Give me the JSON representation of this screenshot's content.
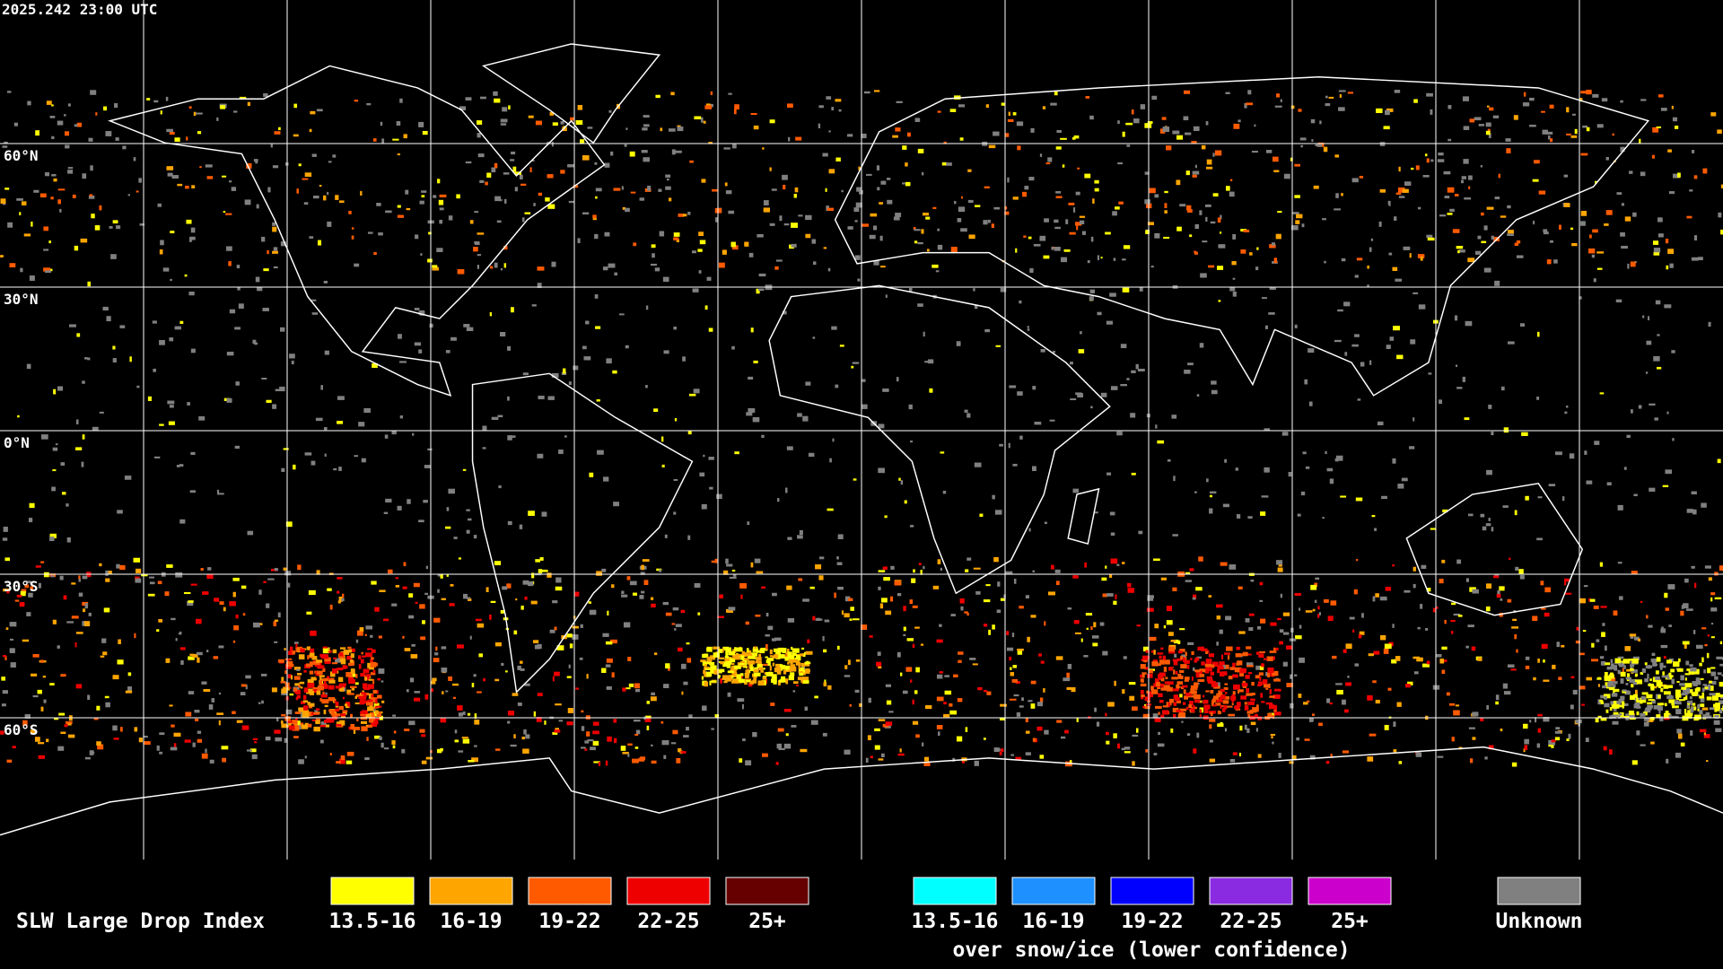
{
  "timestamp": "2025.242 23:00 UTC",
  "latitude_labels": [
    "60°N",
    "30°N",
    "0°N",
    "30°S",
    "60°S"
  ],
  "legend": {
    "title": "SLW Large Drop Index",
    "groups": [
      {
        "items": [
          {
            "label": "13.5-16",
            "color": "#ffff00"
          },
          {
            "label": "16-19",
            "color": "#ffa500"
          },
          {
            "label": "19-22",
            "color": "#ff5a00"
          },
          {
            "label": "22-25",
            "color": "#ee0000"
          },
          {
            "label": "25+",
            "color": "#660000"
          }
        ]
      },
      {
        "items": [
          {
            "label": "13.5-16",
            "color": "#00ffff"
          },
          {
            "label": "16-19",
            "color": "#1e90ff"
          },
          {
            "label": "19-22",
            "color": "#0000ff"
          },
          {
            "label": "22-25",
            "color": "#8a2be2"
          },
          {
            "label": "25+",
            "color": "#cc00cc"
          }
        ],
        "note": "over snow/ice (lower confidence)"
      }
    ],
    "unknown": {
      "label": "Unknown",
      "color": "#808080"
    }
  }
}
